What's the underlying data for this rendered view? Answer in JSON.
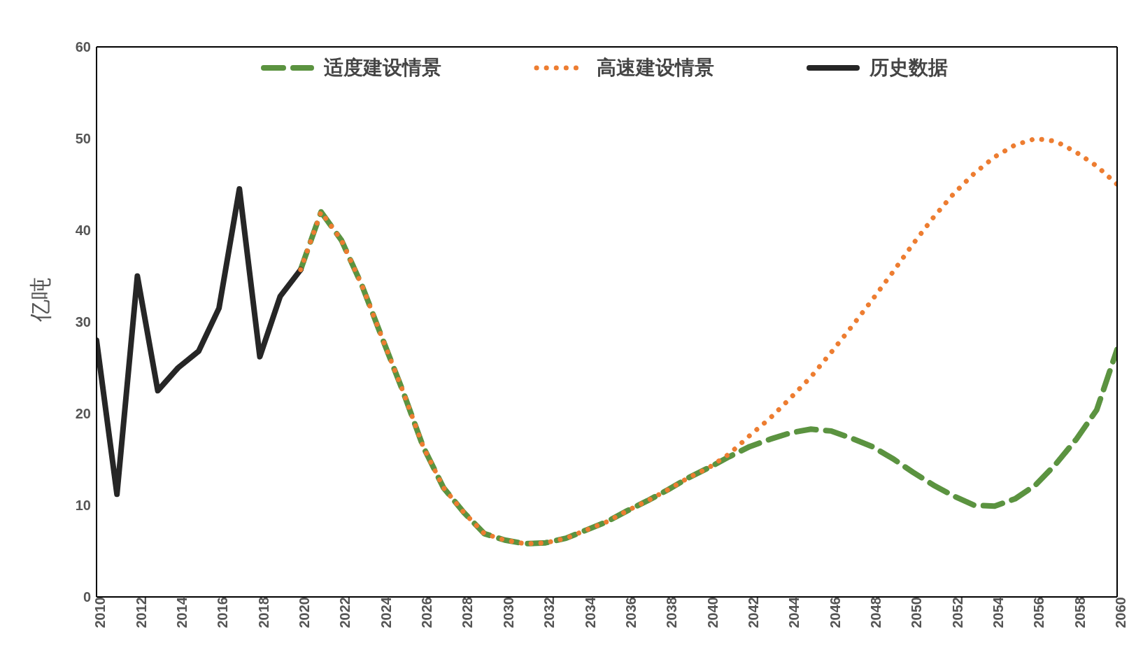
{
  "chart_data": {
    "type": "line",
    "ylabel": "亿吨",
    "xlim": [
      2010,
      2060
    ],
    "ylim": [
      0,
      60
    ],
    "xticks": [
      2010,
      2012,
      2014,
      2016,
      2018,
      2020,
      2022,
      2024,
      2026,
      2028,
      2030,
      2032,
      2034,
      2036,
      2038,
      2040,
      2042,
      2044,
      2046,
      2048,
      2050,
      2052,
      2054,
      2056,
      2058,
      2060
    ],
    "yticks": [
      0,
      10,
      20,
      30,
      40,
      50,
      60
    ],
    "legend": "top",
    "marker": "none",
    "series": [
      {
        "name": "适度建设情景",
        "color": "#5b9340",
        "line_style": "dashed",
        "x": [
          2020,
          2021,
          2022,
          2023,
          2024,
          2025,
          2026,
          2027,
          2028,
          2029,
          2030,
          2031,
          2032,
          2033,
          2034,
          2035,
          2036,
          2037,
          2038,
          2039,
          2040,
          2041,
          2042,
          2043,
          2044,
          2045,
          2046,
          2047,
          2048,
          2049,
          2050,
          2051,
          2052,
          2053,
          2054,
          2055,
          2056,
          2057,
          2058,
          2059,
          2060
        ],
        "values": [
          35.7,
          42,
          38.9,
          34,
          28.2,
          22.5,
          16.4,
          11.9,
          9.2,
          6.9,
          6.2,
          5.8,
          5.9,
          6.4,
          7.3,
          8.2,
          9.4,
          10.5,
          11.7,
          13,
          14.1,
          15.3,
          16.4,
          17.2,
          17.9,
          18.3,
          18.1,
          17.3,
          16.4,
          15.1,
          13.6,
          12.2,
          11,
          10,
          9.9,
          10.7,
          12.2,
          14.5,
          17.2,
          20.4,
          27
        ]
      },
      {
        "name": "高速建设情景",
        "color": "#ed7d31",
        "line_style": "dotted",
        "x": [
          2020,
          2021,
          2022,
          2023,
          2024,
          2025,
          2026,
          2027,
          2028,
          2029,
          2030,
          2031,
          2032,
          2033,
          2034,
          2035,
          2036,
          2037,
          2038,
          2039,
          2040,
          2041,
          2042,
          2043,
          2044,
          2045,
          2046,
          2047,
          2048,
          2049,
          2050,
          2051,
          2052,
          2053,
          2054,
          2055,
          2056,
          2057,
          2058,
          2059,
          2060
        ],
        "values": [
          35.7,
          42,
          38.9,
          34,
          28.2,
          22.5,
          16.4,
          11.9,
          9.2,
          6.9,
          6.2,
          5.8,
          5.9,
          6.4,
          7.3,
          8.2,
          9.4,
          10.5,
          11.7,
          13,
          14.1,
          15.6,
          17.6,
          19.5,
          21.7,
          24,
          26.7,
          29.5,
          32.4,
          35.4,
          38.5,
          41.4,
          44,
          46.2,
          48,
          49.3,
          50,
          49.7,
          48.5,
          47,
          45
        ]
      },
      {
        "name": "历史数据",
        "color": "#262626",
        "line_style": "solid",
        "x": [
          2010,
          2011,
          2012,
          2013,
          2014,
          2015,
          2016,
          2017,
          2018,
          2019,
          2020
        ],
        "values": [
          28,
          11.2,
          35,
          22.5,
          25,
          26.8,
          31.5,
          44.5,
          26.2,
          32.8,
          35.7
        ]
      }
    ]
  }
}
